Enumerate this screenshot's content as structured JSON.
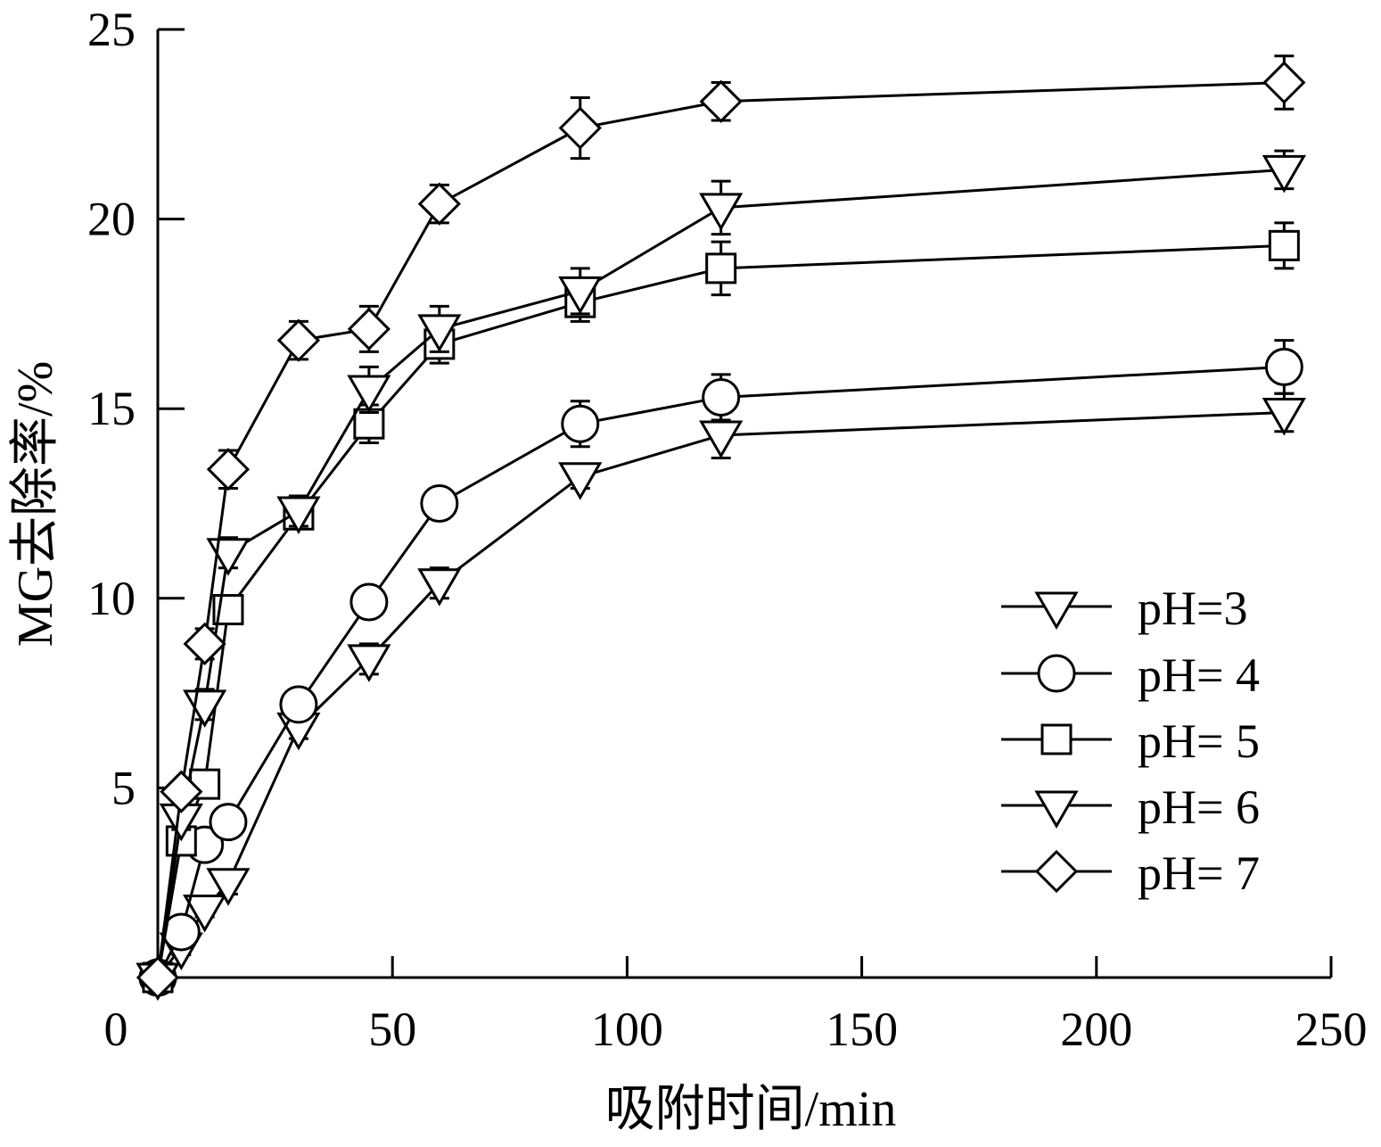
{
  "chart_data": {
    "type": "line",
    "title": "",
    "xlabel": "吸附时间/min",
    "ylabel": "MG去除率/%",
    "xlim": [
      0,
      250
    ],
    "ylim": [
      0,
      25
    ],
    "xticks": [
      0,
      50,
      100,
      150,
      200,
      250
    ],
    "xtick_labels": [
      "0",
      "50",
      "100",
      "150",
      "200",
      "250"
    ],
    "yticks": [
      5,
      10,
      15,
      20,
      25
    ],
    "ytick_labels": [
      "5",
      "10",
      "15",
      "20",
      "25"
    ],
    "grid": false,
    "legend_position": "right",
    "series": [
      {
        "name": "pH=3",
        "marker": "triangle-down",
        "x": [
          0,
          5,
          10,
          15,
          30,
          45,
          60,
          90,
          120,
          240
        ],
        "y": [
          0,
          0.8,
          1.8,
          2.5,
          6.6,
          8.4,
          10.4,
          13.2,
          14.3,
          14.9
        ],
        "err": [
          0.1,
          0.2,
          0.2,
          0.3,
          0.3,
          0.4,
          0.4,
          0.3,
          0.6,
          0.5
        ]
      },
      {
        "name": "pH= 4",
        "marker": "circle",
        "x": [
          0,
          5,
          10,
          15,
          30,
          45,
          60,
          90,
          120,
          240
        ],
        "y": [
          0,
          1.2,
          3.5,
          4.1,
          7.2,
          9.9,
          12.5,
          14.6,
          15.3,
          16.1
        ],
        "err": [
          0.1,
          0.3,
          0.3,
          0.3,
          0.3,
          0.4,
          0.4,
          0.6,
          0.6,
          0.7
        ]
      },
      {
        "name": "pH= 5",
        "marker": "square",
        "x": [
          0,
          5,
          10,
          15,
          30,
          45,
          60,
          90,
          120,
          240
        ],
        "y": [
          0,
          3.6,
          5.1,
          9.7,
          12.2,
          14.6,
          16.7,
          17.8,
          18.7,
          19.3
        ],
        "err": [
          0.1,
          0.2,
          0.2,
          0.3,
          0.3,
          0.5,
          0.5,
          0.5,
          0.7,
          0.6
        ]
      },
      {
        "name": "pH= 6",
        "marker": "triangle-down",
        "x": [
          0,
          5,
          10,
          15,
          30,
          45,
          60,
          90,
          120,
          240
        ],
        "y": [
          0,
          4.2,
          7.2,
          11.2,
          12.3,
          15.5,
          17.1,
          18.1,
          20.3,
          21.3
        ],
        "err": [
          0.1,
          0.3,
          0.4,
          0.4,
          0.4,
          0.6,
          0.6,
          0.6,
          0.7,
          0.5
        ]
      },
      {
        "name": "pH= 7",
        "marker": "diamond",
        "x": [
          0,
          5,
          10,
          15,
          30,
          45,
          60,
          90,
          120,
          240
        ],
        "y": [
          0,
          4.9,
          8.8,
          13.4,
          16.8,
          17.1,
          20.4,
          22.4,
          23.1,
          23.6
        ],
        "err": [
          0.1,
          0.2,
          0.4,
          0.5,
          0.5,
          0.6,
          0.5,
          0.8,
          0.5,
          0.7
        ]
      }
    ]
  }
}
